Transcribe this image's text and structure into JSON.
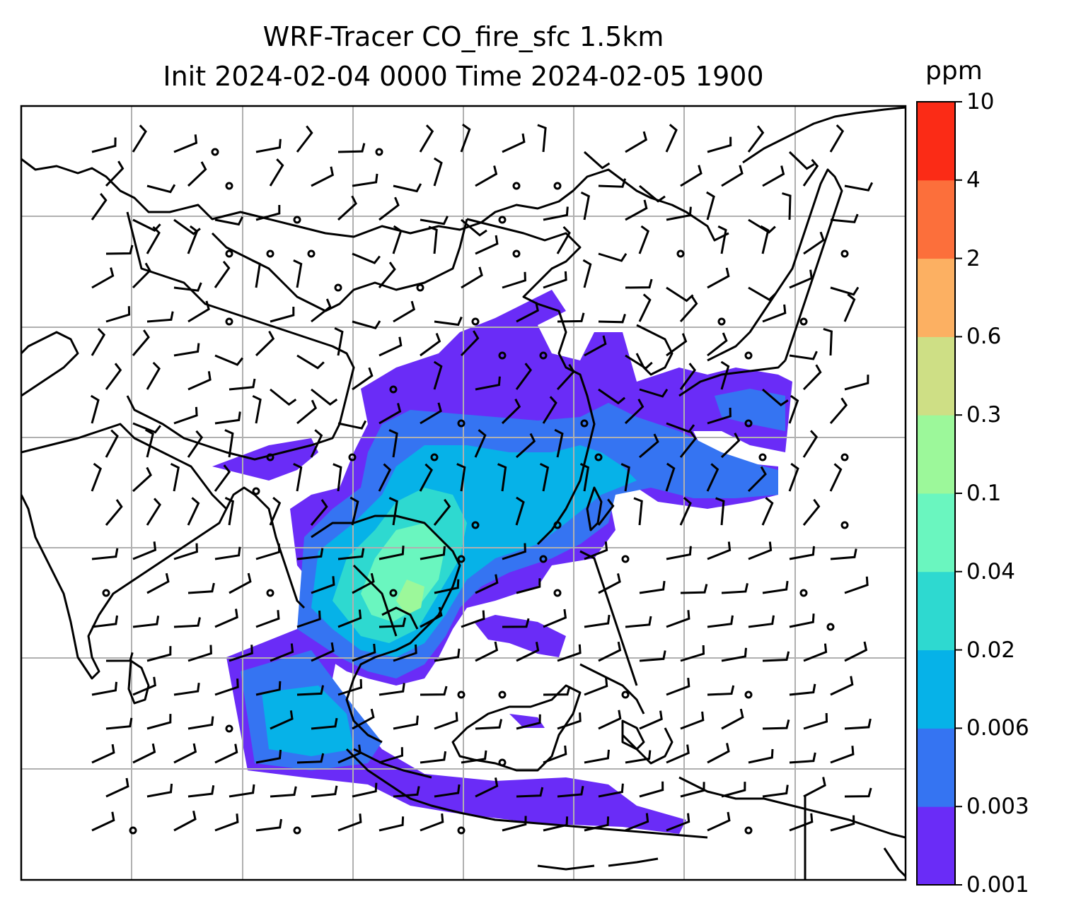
{
  "title": {
    "line1": "WRF-Tracer CO_fire_sfc 1.5km",
    "line2": "Init 2024-02-04 0000 Time 2024-02-05 1900"
  },
  "colorbar": {
    "unit": "ppm",
    "ticks": [
      "0.001",
      "0.003",
      "0.006",
      "0.02",
      "0.04",
      "0.1",
      "0.3",
      "0.6",
      "2",
      "4",
      "10"
    ],
    "colors": [
      "#6a2cf7",
      "#3574f2",
      "#06b2e8",
      "#2ed9d0",
      "#6af6bf",
      "#9cf89a",
      "#cedf85",
      "#fcb062",
      "#fc6f3b",
      "#fb2b16"
    ]
  },
  "map": {
    "field": "CO_fire_sfc",
    "coastline_color": "#000000",
    "grid_color": "#b0b0b0",
    "wind_symbol": "barbs"
  }
}
